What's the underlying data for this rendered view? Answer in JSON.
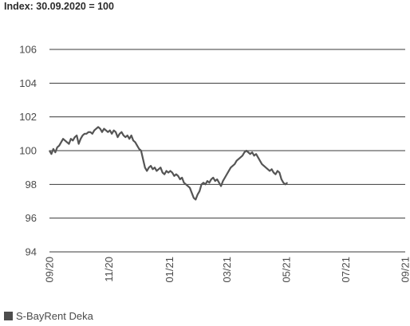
{
  "chart_data": {
    "type": "line",
    "subtitle": "Index: 30.09.2020 = 100",
    "ylim": [
      94,
      106
    ],
    "yticks": [
      94,
      96,
      98,
      100,
      102,
      104,
      106
    ],
    "xlim": [
      0,
      365
    ],
    "xticks": [
      {
        "label": "09/20",
        "day": 0
      },
      {
        "label": "11/20",
        "day": 61
      },
      {
        "label": "01/21",
        "day": 123
      },
      {
        "label": "03/21",
        "day": 182
      },
      {
        "label": "05/21",
        "day": 243
      },
      {
        "label": "07/21",
        "day": 304
      },
      {
        "label": "09/21",
        "day": 365
      }
    ],
    "grid": true,
    "legend_position": "bottom-left",
    "series": [
      {
        "name": "S-BayRent Deka",
        "color": "#555555",
        "points": [
          [
            0,
            100.0
          ],
          [
            2,
            99.8
          ],
          [
            4,
            100.1
          ],
          [
            6,
            99.9
          ],
          [
            8,
            100.2
          ],
          [
            10,
            100.3
          ],
          [
            12,
            100.5
          ],
          [
            14,
            100.7
          ],
          [
            16,
            100.6
          ],
          [
            18,
            100.5
          ],
          [
            20,
            100.4
          ],
          [
            22,
            100.7
          ],
          [
            24,
            100.6
          ],
          [
            26,
            100.8
          ],
          [
            28,
            100.9
          ],
          [
            30,
            100.4
          ],
          [
            32,
            100.7
          ],
          [
            34,
            100.9
          ],
          [
            36,
            101.0
          ],
          [
            38,
            101.0
          ],
          [
            40,
            101.1
          ],
          [
            42,
            101.1
          ],
          [
            44,
            101.0
          ],
          [
            46,
            101.2
          ],
          [
            48,
            101.3
          ],
          [
            50,
            101.4
          ],
          [
            52,
            101.3
          ],
          [
            54,
            101.1
          ],
          [
            56,
            101.3
          ],
          [
            58,
            101.2
          ],
          [
            60,
            101.1
          ],
          [
            62,
            101.2
          ],
          [
            64,
            101.0
          ],
          [
            66,
            101.2
          ],
          [
            68,
            101.1
          ],
          [
            70,
            100.8
          ],
          [
            72,
            101.0
          ],
          [
            74,
            101.1
          ],
          [
            76,
            100.9
          ],
          [
            78,
            100.8
          ],
          [
            80,
            100.9
          ],
          [
            82,
            100.7
          ],
          [
            84,
            100.9
          ],
          [
            86,
            100.6
          ],
          [
            88,
            100.5
          ],
          [
            90,
            100.3
          ],
          [
            92,
            100.1
          ],
          [
            94,
            100.0
          ],
          [
            96,
            99.5
          ],
          [
            98,
            99.0
          ],
          [
            100,
            98.8
          ],
          [
            102,
            99.0
          ],
          [
            104,
            99.1
          ],
          [
            106,
            98.9
          ],
          [
            108,
            99.0
          ],
          [
            110,
            98.8
          ],
          [
            112,
            98.9
          ],
          [
            114,
            99.0
          ],
          [
            116,
            98.7
          ],
          [
            118,
            98.6
          ],
          [
            120,
            98.8
          ],
          [
            122,
            98.7
          ],
          [
            124,
            98.8
          ],
          [
            126,
            98.7
          ],
          [
            128,
            98.5
          ],
          [
            130,
            98.6
          ],
          [
            132,
            98.5
          ],
          [
            134,
            98.3
          ],
          [
            136,
            98.4
          ],
          [
            138,
            98.1
          ],
          [
            140,
            98.0
          ],
          [
            142,
            97.9
          ],
          [
            144,
            97.8
          ],
          [
            146,
            97.5
          ],
          [
            148,
            97.2
          ],
          [
            150,
            97.1
          ],
          [
            152,
            97.4
          ],
          [
            154,
            97.6
          ],
          [
            156,
            98.0
          ],
          [
            158,
            98.1
          ],
          [
            160,
            98.0
          ],
          [
            162,
            98.2
          ],
          [
            164,
            98.1
          ],
          [
            166,
            98.3
          ],
          [
            168,
            98.4
          ],
          [
            170,
            98.2
          ],
          [
            172,
            98.3
          ],
          [
            174,
            98.1
          ],
          [
            176,
            97.9
          ],
          [
            178,
            98.2
          ],
          [
            180,
            98.4
          ],
          [
            182,
            98.6
          ],
          [
            184,
            98.8
          ],
          [
            186,
            99.0
          ],
          [
            188,
            99.1
          ],
          [
            190,
            99.2
          ],
          [
            192,
            99.4
          ],
          [
            194,
            99.5
          ],
          [
            196,
            99.6
          ],
          [
            198,
            99.7
          ],
          [
            200,
            99.9
          ],
          [
            202,
            100.0
          ],
          [
            204,
            99.9
          ],
          [
            206,
            99.8
          ],
          [
            208,
            99.9
          ],
          [
            210,
            99.7
          ],
          [
            212,
            99.8
          ],
          [
            214,
            99.6
          ],
          [
            216,
            99.4
          ],
          [
            218,
            99.2
          ],
          [
            220,
            99.1
          ],
          [
            222,
            99.0
          ],
          [
            224,
            98.9
          ],
          [
            226,
            98.8
          ],
          [
            228,
            98.9
          ],
          [
            230,
            98.7
          ],
          [
            232,
            98.6
          ],
          [
            234,
            98.8
          ],
          [
            236,
            98.7
          ],
          [
            238,
            98.3
          ],
          [
            240,
            98.1
          ],
          [
            242,
            98.0
          ],
          [
            244,
            98.1
          ]
        ]
      }
    ]
  }
}
